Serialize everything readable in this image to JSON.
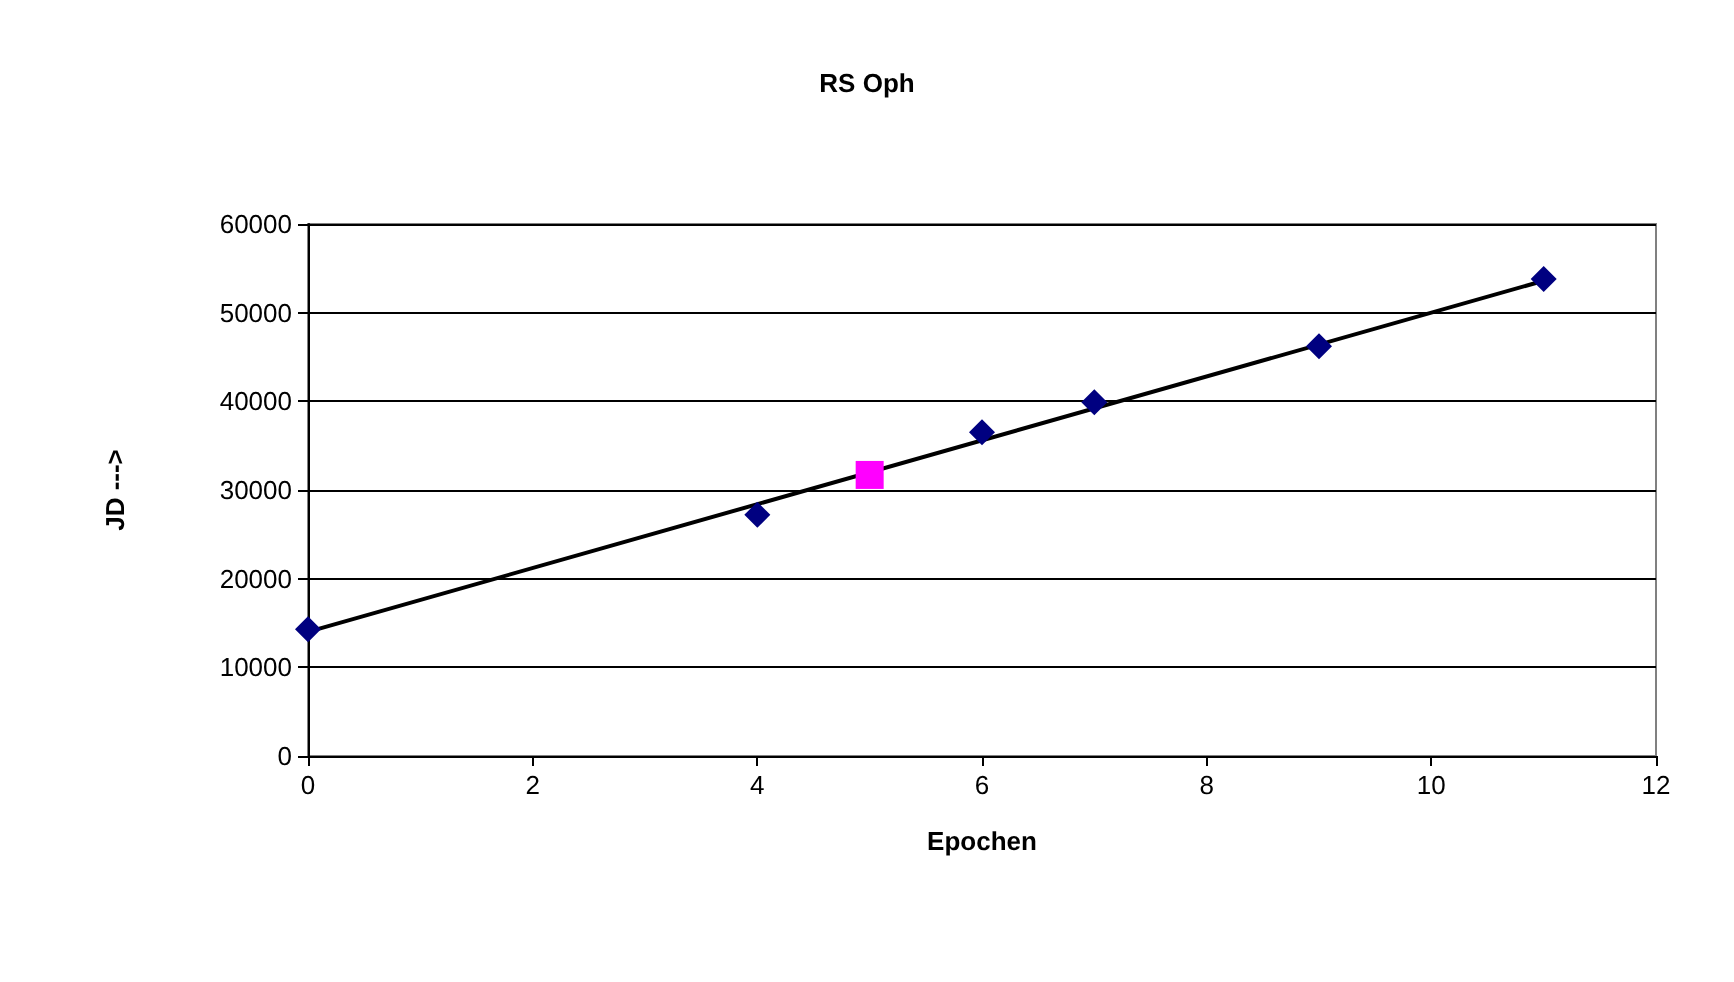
{
  "chart_data": {
    "type": "scatter",
    "title": "RS Oph",
    "xlabel": "Epochen",
    "ylabel": "JD --->",
    "xlim": [
      0,
      12
    ],
    "xticks": [
      0,
      2,
      4,
      6,
      8,
      10,
      12
    ],
    "ylim": [
      0,
      60000
    ],
    "yticks": [
      0,
      10000,
      20000,
      30000,
      40000,
      50000,
      60000
    ],
    "grid": "y",
    "series": [
      {
        "type": "line",
        "color": "#000000",
        "marker": "none",
        "line_style": "solid",
        "x": [
          0,
          11
        ],
        "values": [
          14000,
          53600
        ]
      },
      {
        "color": "#000080",
        "marker": "diamond",
        "x": [
          0,
          4,
          6,
          7,
          9,
          11
        ],
        "values": [
          14300,
          27200,
          36500,
          39900,
          46200,
          53800
        ]
      },
      {
        "color": "#ff00ff",
        "marker": "square",
        "x": [
          5
        ],
        "values": [
          31700
        ]
      }
    ]
  }
}
